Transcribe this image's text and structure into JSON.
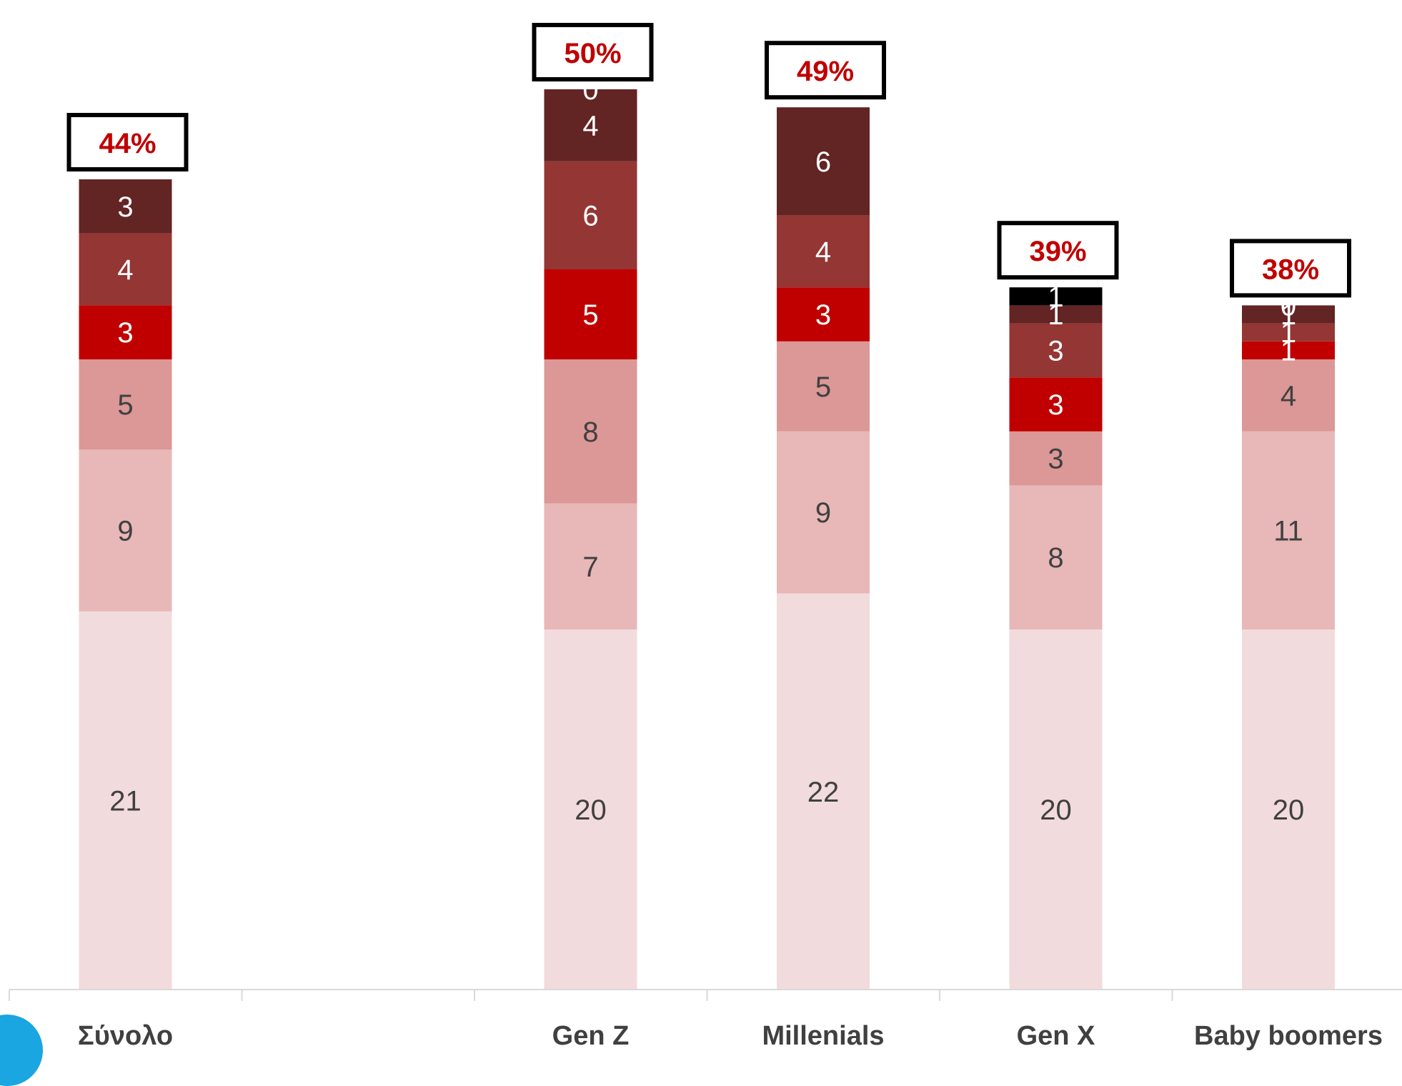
{
  "colors": {
    "segments": [
      "#f2dbdc",
      "#e8b7b8",
      "#dc9797",
      "#c00000",
      "#943634",
      "#632424",
      "#000000"
    ],
    "segment_label_dark": "#404040",
    "segment_label_light": "#ffffff",
    "total_text": "#c00000",
    "total_box_border": "#000000",
    "axis": "#d9d9d9",
    "category_text": "#404040"
  },
  "chart_data": {
    "type": "bar",
    "stacked": true,
    "categories": [
      "Σύνολο",
      "",
      "Gen Z",
      "Millenials",
      "Gen X",
      "Baby boomers"
    ],
    "series": [
      {
        "values": [
          21,
          null,
          20,
          22,
          20,
          20
        ]
      },
      {
        "values": [
          9,
          null,
          7,
          9,
          8,
          11
        ]
      },
      {
        "values": [
          5,
          null,
          8,
          5,
          3,
          4
        ]
      },
      {
        "values": [
          3,
          null,
          5,
          3,
          3,
          1
        ]
      },
      {
        "values": [
          4,
          null,
          6,
          4,
          3,
          1
        ]
      },
      {
        "values": [
          3,
          null,
          4,
          6,
          1,
          1
        ]
      },
      {
        "values": [
          null,
          null,
          0,
          null,
          1,
          0
        ]
      }
    ],
    "totals": [
      "44%",
      "",
      "50%",
      "49%",
      "39%",
      "38%"
    ],
    "grid": false,
    "legend": "none"
  }
}
